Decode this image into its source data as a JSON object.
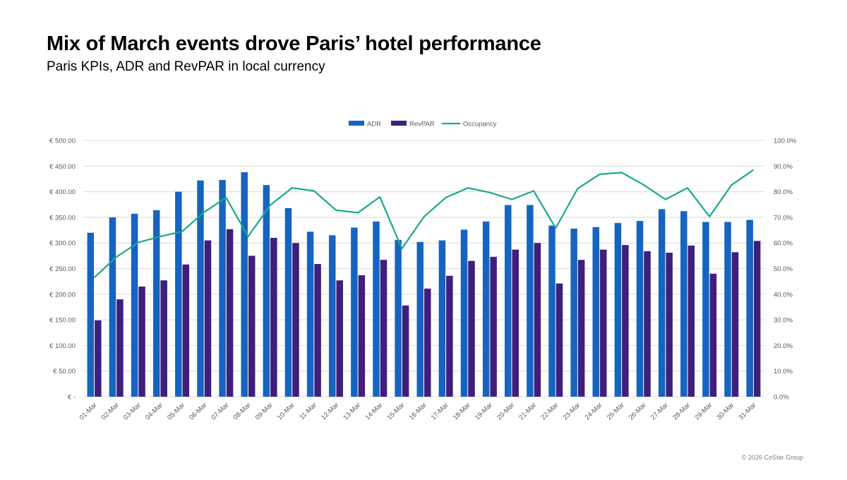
{
  "header": {
    "title": "Mix of March events drove Paris’ hotel performance",
    "subtitle": "Paris KPIs, ADR and RevPAR in local currency"
  },
  "footer": {
    "copyright": "© 2026 CoStar Group"
  },
  "colors": {
    "adr": "#1565C0",
    "revpar": "#3E1F7E",
    "occupancy": "#1AA88C",
    "grid": "#D9D9D9",
    "axis_text": "#595959"
  },
  "chart_data": {
    "type": "bar",
    "title": "",
    "xlabel": "",
    "ylabel": "",
    "categories": [
      "01-Mar",
      "02-Mar",
      "03-Mar",
      "04-Mar",
      "05-Mar",
      "06-Mar",
      "07-Mar",
      "08-Mar",
      "09-Mar",
      "10-Mar",
      "11-Mar",
      "12-Mar",
      "13-Mar",
      "14-Mar",
      "15-Mar",
      "16-Mar",
      "17-Mar",
      "18-Mar",
      "19-Mar",
      "20-Mar",
      "21-Mar",
      "22-Mar",
      "23-Mar",
      "24-Mar",
      "25-Mar",
      "26-Mar",
      "27-Mar",
      "28-Mar",
      "29-Mar",
      "30-Mar",
      "31-Mar"
    ],
    "ylim": [
      0,
      500
    ],
    "y2lim": [
      0,
      100
    ],
    "y_ticks": [
      "€ -",
      "€ 50.00",
      "€ 100.00",
      "€ 150.00",
      "€ 200.00",
      "€ 250.00",
      "€ 300.00",
      "€ 350.00",
      "€ 400.00",
      "€ 450.00",
      "€ 500.00"
    ],
    "y2_ticks": [
      "0.0%",
      "10.0%",
      "20.0%",
      "30.0%",
      "40.0%",
      "50.0%",
      "60.0%",
      "70.0%",
      "80.0%",
      "90.0%",
      "100.0%"
    ],
    "grid": true,
    "legend_position": "top-center",
    "series": [
      {
        "name": "ADR",
        "kind": "bar",
        "axis": "left",
        "values": [
          320,
          350,
          357,
          364,
          400,
          422,
          423,
          438,
          413,
          368,
          322,
          315,
          330,
          342,
          306,
          302,
          305,
          326,
          342,
          374,
          374,
          334,
          328,
          331,
          339,
          343,
          366,
          362,
          341,
          341,
          345
        ]
      },
      {
        "name": "RevPAR",
        "kind": "bar",
        "axis": "left",
        "values": [
          149,
          190,
          215,
          227,
          258,
          305,
          327,
          275,
          310,
          300,
          259,
          227,
          237,
          267,
          178,
          211,
          236,
          265,
          273,
          287,
          300,
          221,
          267,
          287,
          296,
          284,
          281,
          295,
          240,
          282,
          304
        ]
      },
      {
        "name": "Occupancy",
        "kind": "line",
        "axis": "right",
        "values": [
          46.5,
          54.5,
          60.2,
          62.5,
          64.5,
          72.0,
          77.7,
          62.5,
          74.7,
          81.5,
          80.3,
          72.8,
          71.8,
          78.0,
          57.8,
          70.2,
          77.7,
          81.5,
          79.7,
          77.0,
          80.3,
          65.8,
          81.2,
          86.8,
          87.5,
          82.7,
          77.0,
          81.5,
          70.3,
          82.6,
          88.5
        ]
      }
    ]
  }
}
